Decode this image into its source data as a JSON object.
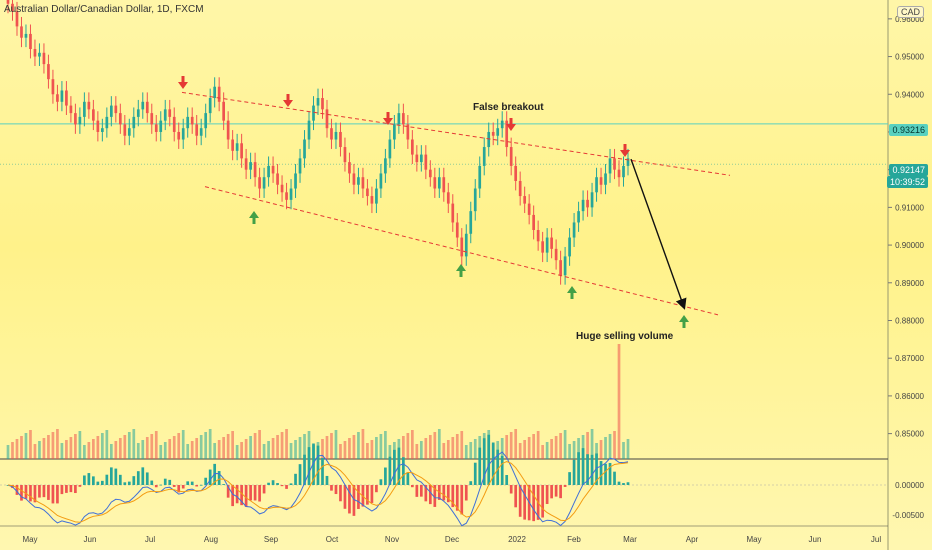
{
  "header": {
    "title": "Australian Dollar/Canadian Dollar, 1D, FXCM"
  },
  "axis": {
    "currency": "CAD",
    "current_price": "0.93216",
    "last_price": "0.92147",
    "countdown": "10:39:52"
  },
  "annotations": {
    "false_breakout": "False breakout",
    "huge_volume": "Huge selling volume"
  },
  "colors": {
    "up": "#26a69a",
    "down": "#ef5350",
    "channel": "#e53935",
    "arrow_up": "#43a047",
    "arrow_down": "#e53935",
    "price_line": "#5ad1c0",
    "macd": "#3f6fd8",
    "signal": "#f39c12"
  },
  "chart_data": [
    {
      "type": "candlestick",
      "title": "Australian Dollar/Canadian Dollar, 1D, FXCM",
      "y_tick_labels": [
        "0.96000",
        "0.95000",
        "0.94000",
        "0.93000",
        "0.92000",
        "0.91000",
        "0.90000",
        "0.89000",
        "0.88000",
        "0.87000",
        "0.86000",
        "0.85000"
      ],
      "ylim": [
        0.843,
        0.965
      ],
      "x_tick_labels": [
        "May",
        "Jun",
        "Jul",
        "Aug",
        "Sep",
        "Oct",
        "Nov",
        "Dec",
        "2022",
        "Feb",
        "Mar",
        "Apr",
        "May",
        "Jun",
        "Jul"
      ],
      "closes": [
        0.964,
        0.962,
        0.958,
        0.955,
        0.956,
        0.952,
        0.95,
        0.951,
        0.948,
        0.944,
        0.94,
        0.938,
        0.941,
        0.937,
        0.935,
        0.932,
        0.934,
        0.938,
        0.936,
        0.933,
        0.93,
        0.931,
        0.934,
        0.937,
        0.935,
        0.932,
        0.929,
        0.931,
        0.934,
        0.936,
        0.938,
        0.935,
        0.932,
        0.93,
        0.933,
        0.936,
        0.934,
        0.93,
        0.928,
        0.931,
        0.934,
        0.932,
        0.929,
        0.931,
        0.935,
        0.939,
        0.942,
        0.938,
        0.933,
        0.928,
        0.925,
        0.927,
        0.923,
        0.92,
        0.922,
        0.918,
        0.915,
        0.918,
        0.921,
        0.919,
        0.916,
        0.914,
        0.912,
        0.915,
        0.919,
        0.923,
        0.928,
        0.933,
        0.937,
        0.939,
        0.936,
        0.931,
        0.928,
        0.93,
        0.926,
        0.922,
        0.919,
        0.916,
        0.918,
        0.915,
        0.913,
        0.911,
        0.915,
        0.919,
        0.923,
        0.928,
        0.932,
        0.935,
        0.932,
        0.928,
        0.924,
        0.922,
        0.924,
        0.92,
        0.918,
        0.915,
        0.918,
        0.914,
        0.911,
        0.906,
        0.902,
        0.897,
        0.903,
        0.909,
        0.915,
        0.921,
        0.926,
        0.93,
        0.929,
        0.931,
        0.933,
        0.926,
        0.921,
        0.917,
        0.913,
        0.911,
        0.908,
        0.904,
        0.901,
        0.898,
        0.902,
        0.899,
        0.896,
        0.892,
        0.897,
        0.902,
        0.906,
        0.909,
        0.912,
        0.91,
        0.914,
        0.918,
        0.916,
        0.919,
        0.923,
        0.92,
        0.918,
        0.921,
        0.923
      ],
      "volume_spike_label": "Huge selling volume"
    },
    {
      "type": "line",
      "name": "oscillator",
      "y_tick_labels": [
        "0.00000",
        "-0.00500"
      ],
      "ylim": [
        -0.0065,
        0.004
      ]
    }
  ]
}
